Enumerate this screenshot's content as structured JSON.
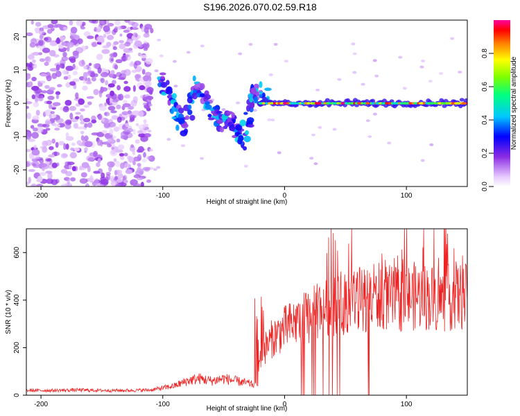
{
  "title": "S196.2026.070.02.59.R18",
  "chart_data": [
    {
      "type": "heatmap",
      "xlabel": "Height of straight line (km)",
      "ylabel": "Frequency (Hz)",
      "xlim": [
        -212,
        150
      ],
      "ylim": [
        -25,
        25
      ],
      "xticks": [
        -200,
        -100,
        0,
        100
      ],
      "yticks": [
        -20,
        -10,
        0,
        10,
        20
      ],
      "colorbar": {
        "label": "Normalized spectral amplitude",
        "range": [
          0,
          1
        ],
        "ticks": [
          "0.0",
          "0.2",
          "0.4",
          "0.6",
          "0.8"
        ],
        "tick_values": [
          0.0,
          0.2,
          0.4,
          0.6,
          0.8
        ],
        "colormap": "rainbow"
      },
      "description": "Diffuse noise below -115 km; oscillating Doppler track -110 to -30 km; steady tone near 0 Hz above -25 km",
      "features": [
        {
          "name": "noise",
          "x_range": [
            -212,
            -115
          ],
          "freq_range": [
            -25,
            25
          ],
          "amplitude": 0.15
        },
        {
          "name": "wandering-track",
          "points": [
            [
              -102,
              8
            ],
            [
              -95,
              2
            ],
            [
              -88,
              -3
            ],
            [
              -82,
              -6
            ],
            [
              -74,
              5
            ],
            [
              -66,
              2
            ],
            [
              -58,
              -3
            ],
            [
              -52,
              -5
            ],
            [
              -46,
              -6
            ],
            [
              -40,
              -5
            ],
            [
              -36,
              -12
            ],
            [
              -30,
              -5
            ],
            [
              -26,
              4
            ],
            [
              -20,
              2
            ],
            [
              -12,
              1
            ]
          ],
          "amplitude": 0.35
        },
        {
          "name": "steady-tone",
          "x_range": [
            -20,
            150
          ],
          "frequency": 0.0,
          "amplitude": 0.95
        }
      ]
    },
    {
      "type": "line",
      "xlabel": "Height of straight line (km)",
      "ylabel": "SNR (10 * v/v)",
      "xlim": [
        -212,
        150
      ],
      "ylim": [
        0,
        700
      ],
      "xticks": [
        -200,
        -100,
        0,
        100
      ],
      "yticks": [
        0,
        200,
        400,
        600
      ],
      "series": [
        {
          "name": "SNR",
          "color": "#ee2222",
          "x": [
            -210,
            -190,
            -170,
            -150,
            -130,
            -110,
            -100,
            -90,
            -80,
            -70,
            -60,
            -50,
            -40,
            -30,
            -22,
            -20,
            -10,
            0,
            10,
            20,
            30,
            40,
            50,
            60,
            70,
            80,
            90,
            100,
            110,
            120,
            130,
            140,
            150
          ],
          "y": [
            20,
            20,
            22,
            20,
            20,
            22,
            30,
            40,
            60,
            70,
            60,
            70,
            60,
            50,
            40,
            170,
            240,
            280,
            310,
            330,
            360,
            380,
            390,
            400,
            410,
            420,
            400,
            410,
            420,
            410,
            400,
            420,
            410
          ]
        }
      ]
    }
  ]
}
